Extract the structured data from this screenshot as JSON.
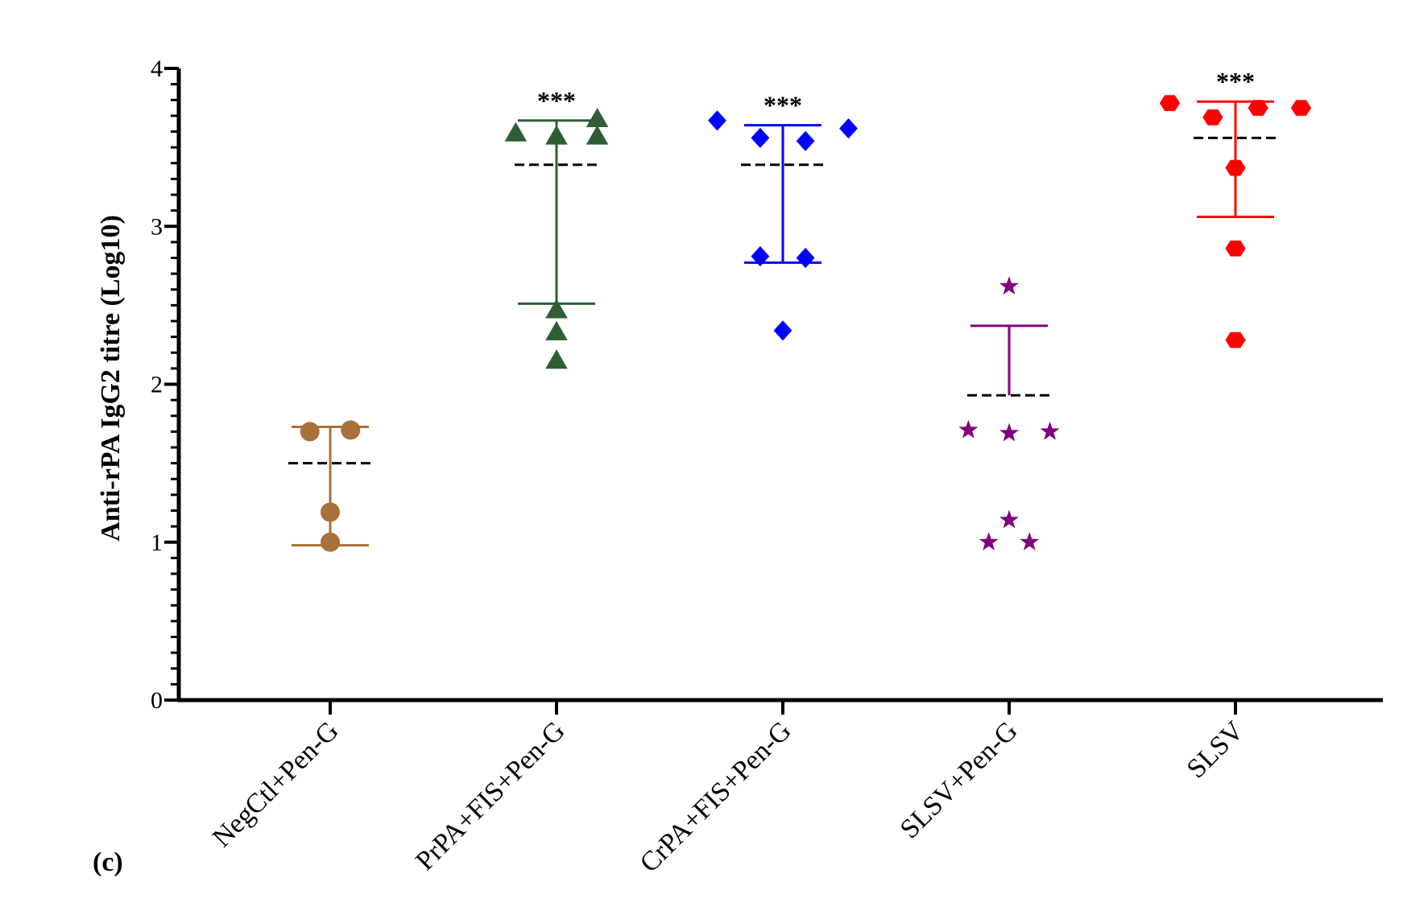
{
  "chart_data": {
    "type": "scatter",
    "panel_label": "(c)",
    "ylabel": "Anti-rPA IgG2 titre (Log10)",
    "xlabel": "",
    "ylim": [
      0,
      4
    ],
    "yticks": [
      0,
      1,
      2,
      3,
      4
    ],
    "categories": [
      "NegCtl+Pen-G",
      "PrPA+FIS+Pen-G",
      "CrPA+FIS+Pen-G",
      "SLSV+Pen-G",
      "SLSV"
    ],
    "series": [
      {
        "name": "NegCtl+Pen-G",
        "color": "#a8713a",
        "marker": "circle",
        "points": [
          [
            -0.09,
            1.7
          ],
          [
            0.09,
            1.71
          ],
          [
            0.0,
            1.19
          ],
          [
            0.0,
            1.0
          ]
        ],
        "mean": 1.5,
        "error_upper": 1.73,
        "error_lower": 0.98,
        "significance": ""
      },
      {
        "name": "PrPA+FIS+Pen-G",
        "color": "#2e5e36",
        "marker": "triangle",
        "points": [
          [
            -0.18,
            3.59
          ],
          [
            0.0,
            3.57
          ],
          [
            0.18,
            3.57
          ],
          [
            0.18,
            3.68
          ],
          [
            0.0,
            2.47
          ],
          [
            0.0,
            2.33
          ],
          [
            0.0,
            2.15
          ]
        ],
        "mean": 3.39,
        "error_upper": 3.67,
        "error_lower": 2.51,
        "significance": "***"
      },
      {
        "name": "CrPA+FIS+Pen-G",
        "color": "#0000ff",
        "marker": "diamond",
        "points": [
          [
            -0.29,
            3.67
          ],
          [
            -0.1,
            3.56
          ],
          [
            0.1,
            3.54
          ],
          [
            0.29,
            3.62
          ],
          [
            -0.1,
            2.81
          ],
          [
            0.1,
            2.8
          ],
          [
            0.0,
            2.34
          ]
        ],
        "mean": 3.39,
        "error_upper": 3.64,
        "error_lower": 2.77,
        "significance": "***"
      },
      {
        "name": "SLSV+Pen-G",
        "color": "#800080",
        "marker": "star",
        "points": [
          [
            0.0,
            2.62
          ],
          [
            -0.18,
            1.71
          ],
          [
            0.0,
            1.69
          ],
          [
            0.18,
            1.7
          ],
          [
            0.0,
            1.14
          ],
          [
            -0.09,
            1.0
          ],
          [
            0.09,
            1.0
          ]
        ],
        "mean": 1.93,
        "error_upper": 2.37,
        "error_lower": null,
        "significance": ""
      },
      {
        "name": "SLSV",
        "color": "#ff0000",
        "marker": "hexagon",
        "points": [
          [
            -0.29,
            3.78
          ],
          [
            -0.1,
            3.69
          ],
          [
            0.1,
            3.75
          ],
          [
            0.29,
            3.75
          ],
          [
            0.0,
            3.37
          ],
          [
            0.0,
            2.86
          ],
          [
            0.0,
            2.28
          ]
        ],
        "mean": 3.56,
        "error_upper": 3.79,
        "error_lower": 3.06,
        "significance": "***"
      }
    ]
  }
}
